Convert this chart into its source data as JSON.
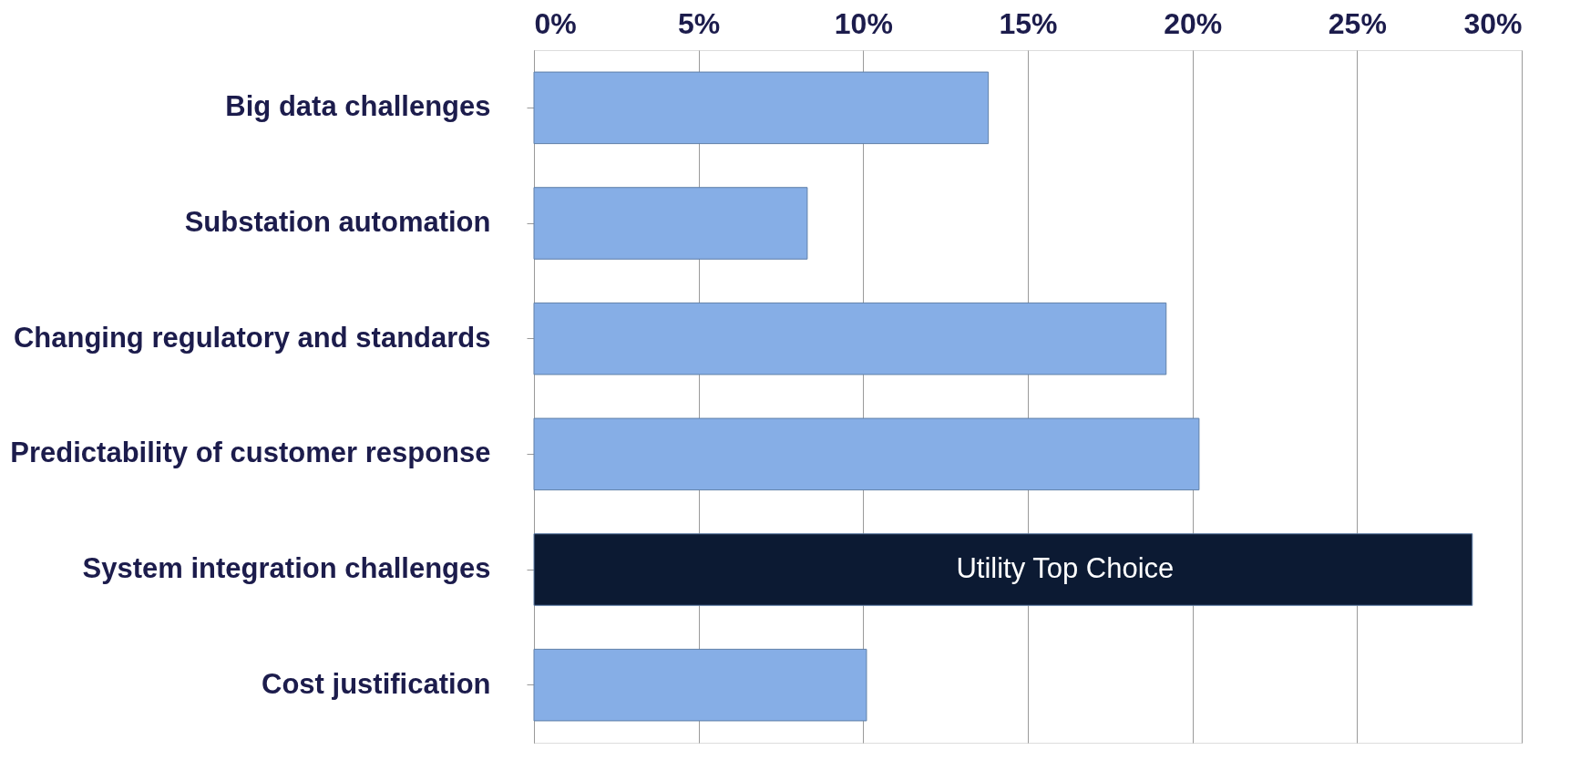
{
  "chart_data": {
    "type": "bar",
    "orientation": "horizontal",
    "categories": [
      "Big data challenges",
      "Substation automation",
      "Changing regulatory and standards",
      "Predictability of customer response",
      "System integration challenges",
      "Cost justification"
    ],
    "values": [
      13.8,
      8.3,
      19.2,
      20.2,
      28.5,
      10.1
    ],
    "colors": [
      "#86aee6",
      "#86aee6",
      "#86aee6",
      "#86aee6",
      "#0c1a33",
      "#86aee6"
    ],
    "xlim": [
      0,
      30
    ],
    "xticks": [
      {
        "value": 0,
        "label": "0%"
      },
      {
        "value": 5,
        "label": "5%"
      },
      {
        "value": 10,
        "label": "10%"
      },
      {
        "value": 15,
        "label": "15%"
      },
      {
        "value": 20,
        "label": "20%"
      },
      {
        "value": 25,
        "label": "25%"
      },
      {
        "value": 30,
        "label": "30%"
      }
    ],
    "annotations": [
      "Utility Top Choice"
    ],
    "grid": "x"
  }
}
